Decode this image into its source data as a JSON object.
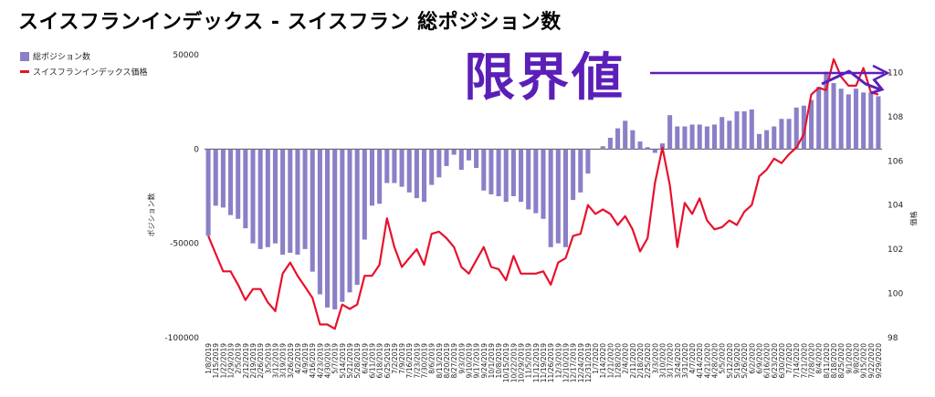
{
  "title": "スイスフランインデックス - スイスフラン 総ポジション数",
  "callout_text": "限界値",
  "colors": {
    "bar": "#8b7fc7",
    "line": "#e8112d",
    "callout": "#5b1fb8",
    "grid": "#cccccc"
  },
  "chart_data": {
    "type": "bar",
    "title": "スイスフランインデックス - スイスフラン 総ポジション数",
    "legend_position": "top-left",
    "categories": [
      "1/8/2019",
      "1/15/2019",
      "1/22/2019",
      "1/29/2019",
      "2/5/2019",
      "2/12/2019",
      "2/19/2019",
      "2/26/2019",
      "3/5/2019",
      "3/12/2019",
      "3/19/2019",
      "3/26/2019",
      "4/2/2019",
      "4/9/2019",
      "4/16/2019",
      "4/23/2019",
      "4/30/2019",
      "5/7/2019",
      "5/14/2019",
      "5/21/2019",
      "5/28/2019",
      "6/4/2019",
      "6/11/2019",
      "6/18/2019",
      "6/25/2019",
      "7/2/2019",
      "7/9/2019",
      "7/16/2019",
      "7/23/2019",
      "7/30/2019",
      "8/6/2019",
      "8/13/2019",
      "8/20/2019",
      "8/27/2019",
      "9/3/2019",
      "9/10/2019",
      "9/17/2019",
      "9/24/2019",
      "10/1/2019",
      "10/8/2019",
      "10/15/2019",
      "10/22/2019",
      "10/29/2019",
      "11/5/2019",
      "11/12/2019",
      "11/19/2019",
      "11/26/2019",
      "12/3/2019",
      "12/10/2019",
      "12/17/2019",
      "12/24/2019",
      "12/31/2019",
      "1/7/2020",
      "1/14/2020",
      "1/21/2020",
      "1/28/2020",
      "2/4/2020",
      "2/11/2020",
      "2/18/2020",
      "2/25/2020",
      "3/3/2020",
      "3/10/2020",
      "3/17/2020",
      "3/24/2020",
      "3/31/2020",
      "4/7/2020",
      "4/14/2020",
      "4/21/2020",
      "4/28/2020",
      "5/5/2020",
      "5/12/2020",
      "5/19/2020",
      "5/26/2020",
      "6/2/2020",
      "6/9/2020",
      "6/16/2020",
      "6/23/2020",
      "6/30/2020",
      "7/7/2020",
      "7/14/2020",
      "7/21/2020",
      "7/28/2020",
      "8/4/2020",
      "8/11/2020",
      "8/18/2020",
      "8/25/2020",
      "9/1/2020",
      "9/8/2020",
      "9/15/2020",
      "9/22/2020",
      "9/29/2020"
    ],
    "tick_labels": [
      "1/8/2019",
      "1/15/2019",
      "1/22/2019",
      "1/29/2019",
      "2/5/2019",
      "2/12/2019",
      "2/19/2019",
      "2/26/2019",
      "3/5/2019",
      "3/12/2019",
      "3/19/2019",
      "3/26/2019",
      "4/2/2019",
      "4/9/2019",
      "4/16/2019",
      "4/23/2019",
      "4/30/2019",
      "5/7/2019",
      "5/14/2019",
      "5/21/2019",
      "5/28/2019",
      "6/4/2019",
      "6/11/2019",
      "6/18/2019",
      "6/25/2019",
      "7/2/2019",
      "7/9/2019",
      "7/16/2019",
      "7/23/2019",
      "7/30/2019",
      "8/6/2019",
      "8/13/2019",
      "8/20/2019",
      "8/27/2019",
      "9/3/2019",
      "9/10/2019",
      "9/17/2019",
      "9/24/2019",
      "10/1/2019",
      "10/8/2019",
      "10/15/2019",
      "10/22/2019",
      "10/29/2019",
      "11/5/2019",
      "11/12/2019",
      "11/19/2019",
      "11/26/2019",
      "12/3/2019",
      "12/10/2019",
      "12/17/2019",
      "12/24/2019",
      "12/31/2019",
      "1/7/2020",
      "1/14/2020",
      "1/21/2020",
      "1/28/2020",
      "2/4/2020",
      "2/11/2020",
      "2/18/2020",
      "2/25/2020",
      "3/3/2020",
      "3/10/2020",
      "3/17/2020",
      "3/24/2020",
      "3/31/2020",
      "4/7/2020",
      "4/14/2020",
      "4/21/2020",
      "4/28/2020",
      "5/5/2020",
      "5/12/2020",
      "5/19/2020",
      "5/26/2020",
      "6/2/2020",
      "6/9/2020",
      "6/16/2020",
      "6/23/2020",
      "6/30/2020",
      "7/7/2020",
      "7/14/2020",
      "7/21/2020",
      "7/28/2020",
      "8/4/2020",
      "8/11/2020",
      "8/18/2020",
      "8/25/2020",
      "9/1/2020",
      "9/8/2020",
      "9/15/2020",
      "9/22/2020",
      "9/29/2020"
    ],
    "series": [
      {
        "name": "総ポジション数",
        "type": "bar",
        "axis": "left",
        "values": [
          -46000,
          -30000,
          -31000,
          -35000,
          -37000,
          -42000,
          -50000,
          -53000,
          -52000,
          -50000,
          -56000,
          -55000,
          -56000,
          -53000,
          -65000,
          -77000,
          -84000,
          -85000,
          -81000,
          -76000,
          -72000,
          -48000,
          -30000,
          -29000,
          -18000,
          -18000,
          -20000,
          -23000,
          -26000,
          -28000,
          -19000,
          -15000,
          -9000,
          -3000,
          -11000,
          -6000,
          -10000,
          -22000,
          -24000,
          -25000,
          -28000,
          -25000,
          -28000,
          -32000,
          -34000,
          -37000,
          -52000,
          -50000,
          -52000,
          -27000,
          -23000,
          -13000,
          0,
          1500,
          6000,
          11000,
          15000,
          10000,
          4000,
          1000,
          -2000,
          3000,
          18000,
          12000,
          12000,
          13000,
          13000,
          12000,
          13000,
          17000,
          15000,
          20000,
          20000,
          21000,
          8000,
          10000,
          12000,
          16000,
          16000,
          22000,
          23000,
          26000,
          33000,
          41000,
          35000,
          32000,
          29000,
          32000,
          30000,
          30000,
          28000
        ]
      },
      {
        "name": "スイスフランインデックス価格",
        "type": "line",
        "axis": "right",
        "values": [
          102.6,
          101.8,
          101.0,
          101.0,
          100.4,
          99.7,
          100.2,
          100.2,
          99.6,
          99.2,
          100.9,
          101.4,
          100.8,
          100.3,
          99.8,
          98.6,
          98.6,
          98.4,
          99.5,
          99.3,
          99.5,
          100.8,
          100.8,
          101.3,
          103.4,
          102.1,
          101.2,
          101.6,
          102.0,
          101.3,
          102.7,
          102.8,
          102.5,
          102.1,
          101.2,
          100.9,
          101.5,
          102.1,
          101.2,
          101.1,
          100.6,
          101.7,
          100.9,
          100.9,
          100.9,
          101.0,
          100.4,
          101.4,
          101.6,
          102.6,
          102.7,
          104.0,
          103.6,
          103.8,
          103.6,
          103.1,
          103.5,
          102.9,
          101.9,
          102.5,
          105.0,
          106.6,
          104.9,
          102.1,
          104.1,
          103.6,
          104.3,
          103.3,
          102.9,
          103.0,
          103.3,
          103.1,
          103.7,
          104.0,
          105.3,
          105.6,
          106.1,
          105.9,
          106.3,
          106.6,
          107.2,
          109.0,
          109.3,
          109.2,
          110.6,
          109.8,
          109.4,
          109.4,
          110.2,
          109.1,
          109.0
        ]
      }
    ],
    "y_left": {
      "label": "ポジション数",
      "ylim": [
        -100000,
        50000
      ],
      "ticks": [
        -100000,
        -50000,
        0,
        50000
      ]
    },
    "y_right": {
      "label": "価格",
      "ylim": [
        98,
        110.8
      ],
      "ticks": [
        98,
        100,
        102,
        104,
        106,
        108,
        110
      ]
    },
    "grid": false
  }
}
